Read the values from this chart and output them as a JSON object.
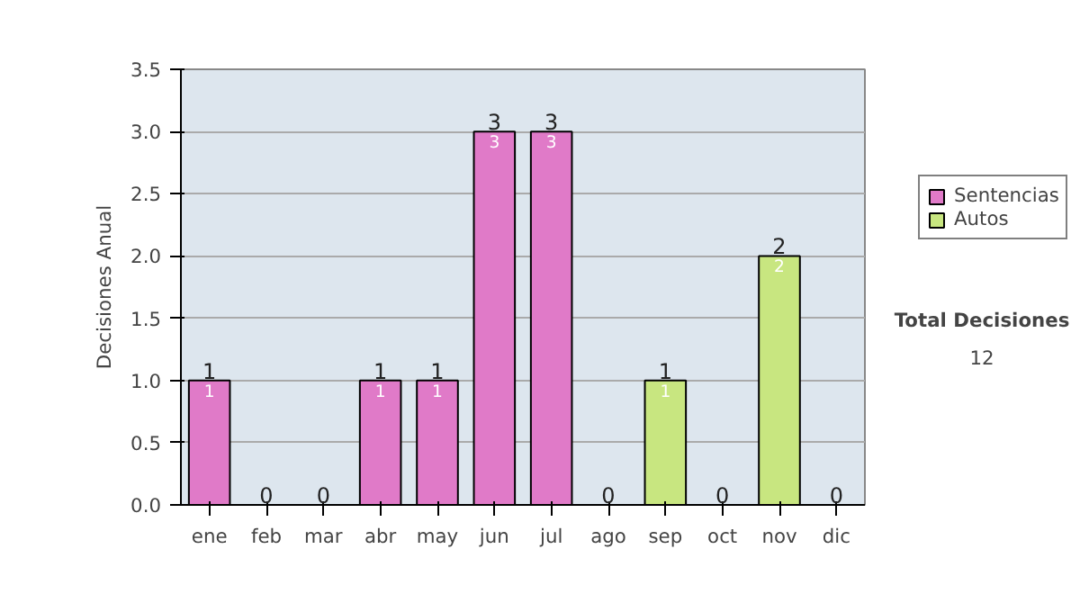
{
  "chart_data": {
    "type": "bar",
    "stacked": true,
    "ylabel": "Decisiones Anual",
    "categories": [
      "ene",
      "feb",
      "mar",
      "abr",
      "may",
      "jun",
      "jul",
      "ago",
      "sep",
      "oct",
      "nov",
      "dic"
    ],
    "series": [
      {
        "name": "Sentencias",
        "color": "#e07ac8",
        "values": [
          1,
          0,
          0,
          1,
          1,
          3,
          3,
          0,
          0,
          0,
          0,
          0
        ],
        "value_labels": [
          "1",
          null,
          null,
          "1",
          "1",
          "3",
          "3",
          null,
          null,
          null,
          null,
          null
        ]
      },
      {
        "name": "Autos",
        "color": "#c8e680",
        "values": [
          0,
          0,
          0,
          0,
          0,
          0,
          0,
          0,
          1,
          0,
          2,
          0
        ],
        "value_labels": [
          null,
          null,
          null,
          null,
          null,
          null,
          null,
          null,
          "1",
          null,
          "2",
          null
        ]
      }
    ],
    "ylim": [
      0,
      3.5
    ],
    "yticks": [
      {
        "value": 0,
        "label": "0.0"
      },
      {
        "value": 0.5,
        "label": "0.5"
      },
      {
        "value": 1,
        "label": "1.0"
      },
      {
        "value": 1.5,
        "label": "1.5"
      },
      {
        "value": 2,
        "label": "2.0"
      },
      {
        "value": 2.5,
        "label": "2.5"
      },
      {
        "value": 3,
        "label": "3.0"
      },
      {
        "value": 3.5,
        "label": "3.5"
      }
    ],
    "grid": "y",
    "legend": "right",
    "data_labels": true,
    "totals": [
      "1",
      "0",
      "0",
      "1",
      "1",
      "3",
      "3",
      "0",
      "1",
      "0",
      "2",
      "0"
    ],
    "annotations": [
      "Total Decisiones",
      "12"
    ]
  }
}
